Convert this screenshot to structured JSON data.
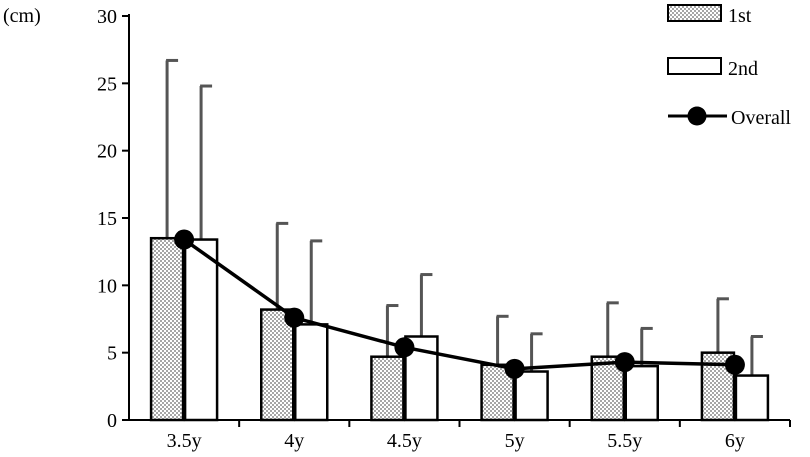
{
  "chart_data": {
    "type": "bar",
    "ylabel": "(cm)",
    "ylim": [
      0,
      30
    ],
    "yticks": [
      0,
      5,
      10,
      15,
      20,
      25,
      30
    ],
    "grid": false,
    "legend_position": "top-right",
    "categories": [
      "3.5y",
      "4y",
      "4.5y",
      "5y",
      "5.5y",
      "6y"
    ],
    "series": [
      {
        "name": "1st",
        "kind": "bar",
        "pattern": "checkered-gray",
        "values": [
          13.5,
          8.2,
          4.7,
          4.1,
          4.7,
          5.0
        ],
        "error_upper": [
          26.7,
          14.6,
          8.5,
          7.7,
          8.7,
          9.0
        ]
      },
      {
        "name": "2nd",
        "kind": "bar",
        "pattern": "white",
        "values": [
          13.4,
          7.1,
          6.2,
          3.6,
          4.0,
          3.3
        ],
        "error_upper": [
          24.8,
          13.3,
          10.8,
          6.4,
          6.8,
          6.2
        ]
      },
      {
        "name": "Overall",
        "kind": "line-with-markers",
        "values": [
          13.4,
          7.6,
          5.4,
          3.8,
          4.3,
          4.1
        ]
      }
    ],
    "colors": {
      "axis": "#000000",
      "error_bar": "#555555",
      "pattern_light": "#ffffff",
      "pattern_dark": "#a6a6a6",
      "line": "#000000"
    }
  }
}
